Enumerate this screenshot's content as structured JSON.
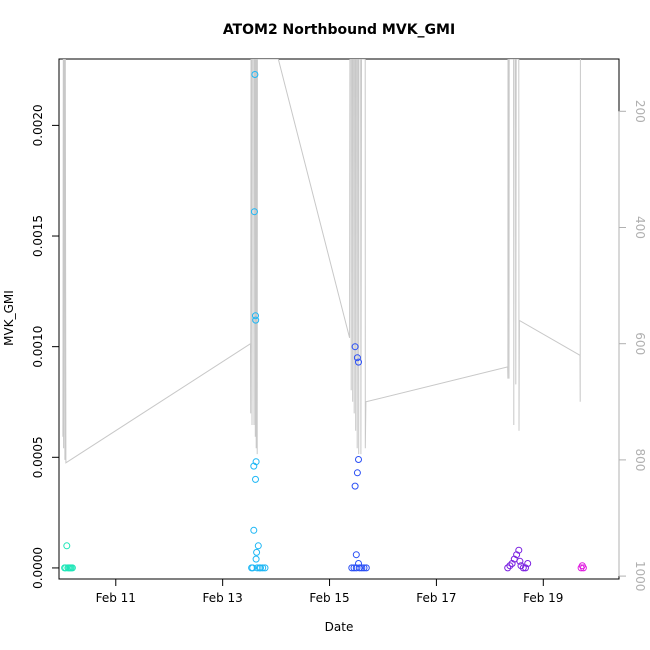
{
  "chart_data": {
    "type": "scatter",
    "title": "ATOM2 Northbound MVK_GMI",
    "xlabel": "Date",
    "ylabel": "MVK_GMI",
    "xlim": [
      "2016-02-09T22:30",
      "2016-02-20T10:00"
    ],
    "ylim": [
      -5e-05,
      0.0023
    ],
    "x_ticks": [
      {
        "label": "Feb 11",
        "value": "2016-02-11"
      },
      {
        "label": "Feb 13",
        "value": "2016-02-13"
      },
      {
        "label": "Feb 15",
        "value": "2016-02-15"
      },
      {
        "label": "Feb 17",
        "value": "2016-02-17"
      },
      {
        "label": "Feb 19",
        "value": "2016-02-19"
      }
    ],
    "y_ticks": [
      {
        "label": "0.0000",
        "value": 0
      },
      {
        "label": "0.0005",
        "value": 0.0005
      },
      {
        "label": "0.0010",
        "value": 0.001
      },
      {
        "label": "0.0015",
        "value": 0.0015
      },
      {
        "label": "0.0020",
        "value": 0.002
      }
    ],
    "y2_ticks": [
      {
        "label": "200",
        "value": 200
      },
      {
        "label": "400",
        "value": 400
      },
      {
        "label": "600",
        "value": 600
      },
      {
        "label": "800",
        "value": 800
      },
      {
        "label": "1000",
        "value": 1000
      }
    ],
    "y2_range": [
      1005,
      110
    ],
    "series": [
      {
        "color": "#1fe6b8",
        "points": [
          [
            "2016-02-10T01:00",
            0
          ],
          [
            "2016-02-10T01:30",
            0
          ],
          [
            "2016-02-10T02:00",
            0.0001
          ],
          [
            "2016-02-10T02:30",
            0
          ],
          [
            "2016-02-10T03:00",
            0
          ],
          [
            "2016-02-10T03:30",
            0
          ],
          [
            "2016-02-10T04:00",
            0
          ],
          [
            "2016-02-10T04:30",
            0
          ]
        ]
      },
      {
        "color": "#1eb7f5",
        "points": [
          [
            "2016-02-13T13:00",
            0
          ],
          [
            "2016-02-13T13:30",
            0
          ],
          [
            "2016-02-13T14:00",
            0.00046
          ],
          [
            "2016-02-13T14:00",
            0.00017
          ],
          [
            "2016-02-13T14:30",
            0.00223
          ],
          [
            "2016-02-13T14:15",
            0.00161
          ],
          [
            "2016-02-13T14:45",
            0.00114
          ],
          [
            "2016-02-13T14:50",
            0.00112
          ],
          [
            "2016-02-13T14:45",
            0.0004
          ],
          [
            "2016-02-13T15:00",
            0.00048
          ],
          [
            "2016-02-13T15:00",
            4e-05
          ],
          [
            "2016-02-13T15:15",
            7e-05
          ],
          [
            "2016-02-13T16:00",
            0.0001
          ],
          [
            "2016-02-13T15:30",
            0
          ],
          [
            "2016-02-13T16:30",
            0
          ],
          [
            "2016-02-13T17:00",
            0
          ],
          [
            "2016-02-13T18:00",
            0
          ],
          [
            "2016-02-13T19:00",
            0
          ]
        ]
      },
      {
        "color": "#2a4ff5",
        "points": [
          [
            "2016-02-15T10:00",
            0
          ],
          [
            "2016-02-15T11:00",
            0
          ],
          [
            "2016-02-15T11:30",
            0.001
          ],
          [
            "2016-02-15T12:30",
            0.00095
          ],
          [
            "2016-02-15T13:00",
            0.00093
          ],
          [
            "2016-02-15T11:30",
            0.00037
          ],
          [
            "2016-02-15T12:30",
            0.00043
          ],
          [
            "2016-02-15T13:00",
            0.00049
          ],
          [
            "2016-02-15T12:00",
            6e-05
          ],
          [
            "2016-02-15T13:00",
            2e-05
          ],
          [
            "2016-02-15T12:00",
            0
          ],
          [
            "2016-02-15T13:30",
            0
          ],
          [
            "2016-02-15T14:30",
            0
          ],
          [
            "2016-02-15T15:30",
            0
          ],
          [
            "2016-02-15T16:30",
            0
          ]
        ]
      },
      {
        "color": "#7a20e0",
        "points": [
          [
            "2016-02-18T08:00",
            0
          ],
          [
            "2016-02-18T09:00",
            1e-05
          ],
          [
            "2016-02-18T10:00",
            2e-05
          ],
          [
            "2016-02-18T11:00",
            4e-05
          ],
          [
            "2016-02-18T12:00",
            6e-05
          ],
          [
            "2016-02-18T13:00",
            8e-05
          ],
          [
            "2016-02-18T13:30",
            3e-05
          ],
          [
            "2016-02-18T14:00",
            1e-05
          ],
          [
            "2016-02-18T15:00",
            0
          ],
          [
            "2016-02-18T16:00",
            0
          ],
          [
            "2016-02-18T17:00",
            2e-05
          ]
        ]
      },
      {
        "color": "#e01ae0",
        "points": [
          [
            "2016-02-19T17:00",
            0
          ],
          [
            "2016-02-19T17:30",
            1e-05
          ],
          [
            "2016-02-19T18:00",
            0
          ]
        ]
      }
    ],
    "altitude_line": {
      "color": "#c8c8c8",
      "points": [
        [
          "2016-02-10T00:15",
          760
        ],
        [
          "2016-02-10T00:25",
          110
        ],
        [
          "2016-02-10T00:35",
          780
        ],
        [
          "2016-02-10T00:45",
          110
        ],
        [
          "2016-02-10T01:00",
          110
        ],
        [
          "2016-02-10T01:10",
          800
        ],
        [
          "2016-02-10T01:20",
          110
        ],
        [
          "2016-02-10T01:35",
          805
        ],
        [
          "2016-02-13T12:30",
          600
        ],
        [
          "2016-02-13T12:35",
          720
        ],
        [
          "2016-02-13T12:45",
          110
        ],
        [
          "2016-02-13T13:00",
          110
        ],
        [
          "2016-02-13T13:10",
          740
        ],
        [
          "2016-02-13T13:20",
          110
        ],
        [
          "2016-02-13T14:00",
          110
        ],
        [
          "2016-02-13T14:05",
          740
        ],
        [
          "2016-02-13T14:10",
          110
        ],
        [
          "2016-02-13T14:35",
          110
        ],
        [
          "2016-02-13T14:40",
          760
        ],
        [
          "2016-02-13T14:50",
          110
        ],
        [
          "2016-02-13T15:00",
          110
        ],
        [
          "2016-02-13T15:05",
          780
        ],
        [
          "2016-02-13T15:10",
          110
        ],
        [
          "2016-02-13T15:25",
          110
        ],
        [
          "2016-02-13T15:30",
          790
        ],
        [
          "2016-02-13T15:35",
          110
        ],
        [
          "2016-02-14T01:00",
          110
        ],
        [
          "2016-02-15T09:00",
          590
        ],
        [
          "2016-02-15T09:10",
          110
        ],
        [
          "2016-02-15T09:40",
          110
        ],
        [
          "2016-02-15T09:45",
          680
        ],
        [
          "2016-02-15T09:50",
          110
        ],
        [
          "2016-02-15T10:20",
          110
        ],
        [
          "2016-02-15T10:25",
          700
        ],
        [
          "2016-02-15T10:30",
          110
        ],
        [
          "2016-02-15T11:00",
          110
        ],
        [
          "2016-02-15T11:05",
          720
        ],
        [
          "2016-02-15T11:10",
          110
        ],
        [
          "2016-02-15T11:40",
          110
        ],
        [
          "2016-02-15T11:45",
          750
        ],
        [
          "2016-02-15T11:50",
          110
        ],
        [
          "2016-02-15T12:20",
          110
        ],
        [
          "2016-02-15T12:25",
          780
        ],
        [
          "2016-02-15T12:30",
          110
        ],
        [
          "2016-02-15T13:00",
          110
        ],
        [
          "2016-02-15T13:05",
          790
        ],
        [
          "2016-02-15T13:10",
          110
        ],
        [
          "2016-02-15T14:00",
          110
        ],
        [
          "2016-02-15T14:05",
          790
        ],
        [
          "2016-02-15T14:20",
          110
        ],
        [
          "2016-02-15T16:00",
          110
        ],
        [
          "2016-02-15T16:05",
          780
        ],
        [
          "2016-02-15T16:20",
          700
        ],
        [
          "2016-02-18T08:00",
          640
        ],
        [
          "2016-02-18T08:05",
          660
        ],
        [
          "2016-02-18T08:10",
          110
        ],
        [
          "2016-02-18T08:30",
          110
        ],
        [
          "2016-02-18T08:35",
          660
        ],
        [
          "2016-02-18T08:40",
          110
        ],
        [
          "2016-02-18T10:40",
          110
        ],
        [
          "2016-02-18T10:45",
          740
        ],
        [
          "2016-02-18T10:50",
          110
        ],
        [
          "2016-02-18T11:30",
          110
        ],
        [
          "2016-02-18T11:40",
          670
        ],
        [
          "2016-02-18T11:50",
          110
        ],
        [
          "2016-02-18T13:00",
          110
        ],
        [
          "2016-02-18T13:05",
          750
        ],
        [
          "2016-02-18T13:15",
          560
        ],
        [
          "2016-02-19T16:30",
          620
        ],
        [
          "2016-02-19T16:35",
          700
        ],
        [
          "2016-02-19T16:40",
          110
        ]
      ]
    }
  }
}
